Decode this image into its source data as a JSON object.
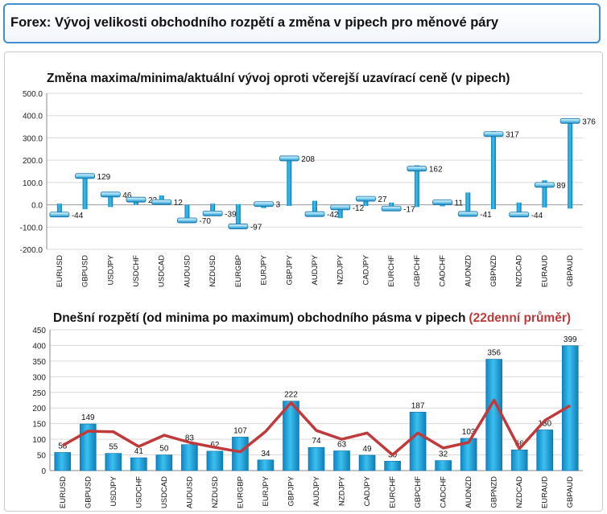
{
  "header": {
    "title": "Forex: Vývoj velikosti obchodního rozpětí a změna v pipech pro měnové páry"
  },
  "colors": {
    "bar": "#1aa0d8",
    "bar_edge": "#0b6fa8",
    "avg_line": "#c0393b",
    "highlight": "#c0393b",
    "accent_border": "#3f8fd2"
  },
  "chart_data": [
    {
      "type": "bar",
      "title": "Změna maxima/minima/aktuální vývoj oproti včerejší uzavírací ceně (v pipech)",
      "categories": [
        "EURUSD",
        "GBPUSD",
        "USDJPY",
        "USDCHF",
        "USDCAD",
        "AUDUSD",
        "NZDUSD",
        "EURGBP",
        "EURJPY",
        "GBPJPY",
        "AUDJPY",
        "NZDJPY",
        "CADJPY",
        "EURCHF",
        "GBPCHF",
        "CADCHF",
        "AUDNZD",
        "GBPNZD",
        "NZDCAD",
        "EURAUD",
        "GBPAUD"
      ],
      "series": [
        {
          "values_high": [
            5,
            135,
            48,
            29,
            42,
            0,
            5,
            3,
            8,
            212,
            18,
            -4,
            33,
            10,
            177,
            18,
            55,
            330,
            10,
            110,
            383
          ]
        },
        {
          "values_low": [
            -44,
            -20,
            -10,
            0,
            0,
            -70,
            -42,
            -100,
            -15,
            -5,
            -50,
            -60,
            -5,
            -22,
            -10,
            -7,
            -44,
            -20,
            -48,
            -12,
            -17
          ]
        },
        {
          "values_current": [
            -44,
            129,
            46,
            23,
            12,
            -70,
            -39,
            -97,
            3,
            208,
            -42,
            -12,
            27,
            -17,
            162,
            11,
            -41,
            317,
            -44,
            89,
            376
          ]
        }
      ],
      "ylim": [
        -200,
        500
      ],
      "yticks": [
        "500.0",
        "400.0",
        "300.0",
        "200.0",
        "100.0",
        "0.0",
        "-100.0",
        "-200.0"
      ],
      "grid": true
    },
    {
      "type": "bar",
      "title": "Dnešní rozpětí (od minima po maximum) obchodního pásma v pipech",
      "title_highlight": "(22denní průměr)",
      "categories": [
        "EURUSD",
        "GBPUSD",
        "USDJPY",
        "USDCHF",
        "USDCAD",
        "AUDUSD",
        "NZDUSD",
        "EURGBP",
        "EURJPY",
        "GBPJPY",
        "AUDJPY",
        "NZDJPY",
        "CADJPY",
        "EURCHF",
        "GBPCHF",
        "CADCHF",
        "AUDNZD",
        "GBPNZD",
        "NZDCAD",
        "EURAUD",
        "GBPAUD"
      ],
      "series": [
        {
          "values": [
            58,
            149,
            55,
            41,
            50,
            83,
            62,
            107,
            34,
            222,
            74,
            63,
            49,
            30,
            187,
            32,
            103,
            356,
            66,
            130,
            399
          ]
        },
        {
          "values_avg": [
            80,
            126,
            124,
            77,
            113,
            90,
            74,
            60,
            125,
            217,
            128,
            100,
            120,
            50,
            120,
            72,
            90,
            225,
            70,
            160,
            208
          ]
        }
      ],
      "ylim": [
        0,
        450
      ],
      "yticks": [
        "450",
        "400",
        "350",
        "300",
        "250",
        "200",
        "150",
        "100",
        "50",
        "0"
      ],
      "grid": true
    }
  ]
}
